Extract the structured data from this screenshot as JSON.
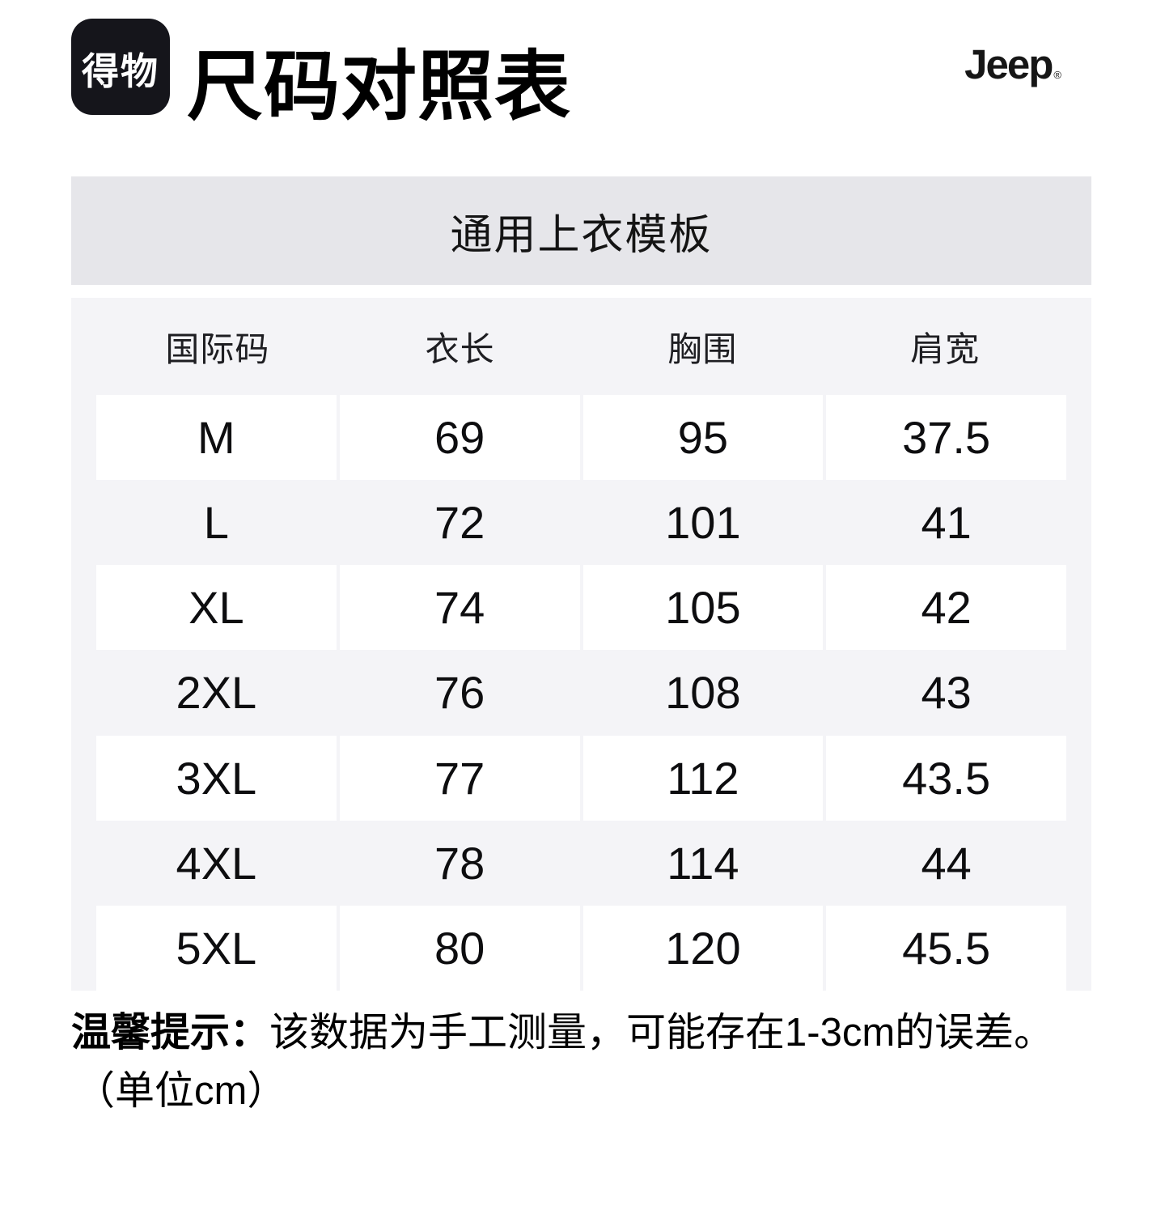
{
  "header": {
    "app_logo_text": "得物",
    "page_title": "尺码对照表",
    "brand_logo_text": "Jeep",
    "brand_reg_mark": "®"
  },
  "template_banner": {
    "title": "通用上衣模板"
  },
  "size_table": {
    "columns": [
      "国际码",
      "衣长",
      "胸围",
      "肩宽"
    ],
    "rows": [
      {
        "size": "M",
        "length": "69",
        "chest": "95",
        "shoulder": "37.5"
      },
      {
        "size": "L",
        "length": "72",
        "chest": "101",
        "shoulder": "41"
      },
      {
        "size": "XL",
        "length": "74",
        "chest": "105",
        "shoulder": "42"
      },
      {
        "size": "2XL",
        "length": "76",
        "chest": "108",
        "shoulder": "43"
      },
      {
        "size": "3XL",
        "length": "77",
        "chest": "112",
        "shoulder": "43.5"
      },
      {
        "size": "4XL",
        "length": "78",
        "chest": "114",
        "shoulder": "44"
      },
      {
        "size": "5XL",
        "length": "80",
        "chest": "120",
        "shoulder": "45.5"
      }
    ]
  },
  "footnote": {
    "label": "温馨提示：",
    "text": "该数据为手工测量，可能存在1-3cm的误差。",
    "unit_note": "（单位cm）"
  },
  "colors": {
    "banner_bg": "#e6e6ea",
    "table_bg": "#f4f4f7",
    "cell_bg": "#ffffff",
    "logo_bg": "#15151b",
    "text": "#111111"
  }
}
